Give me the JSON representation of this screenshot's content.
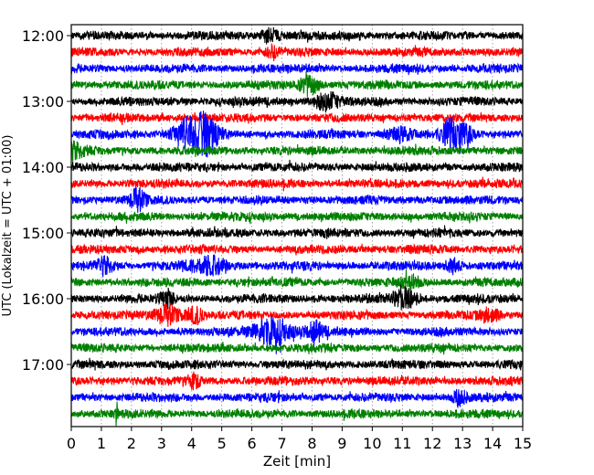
{
  "chart_data": {
    "type": "line",
    "subtype": "seismogram-dayplot",
    "xlabel": "Zeit  [min]",
    "ylabel": "UTC (Lokalzeit = UTC + 01:00)",
    "xlim": [
      0,
      15
    ],
    "x_ticks": [
      "0",
      "1",
      "2",
      "3",
      "4",
      "5",
      "6",
      "7",
      "8",
      "9",
      "10",
      "11",
      "12",
      "13",
      "14",
      "15"
    ],
    "y_ticks": [
      "12:00",
      "13:00",
      "14:00",
      "15:00",
      "16:00",
      "17:00"
    ],
    "grid": true,
    "trace_interval_min": 15,
    "trace_count": 24,
    "trace_colors": [
      "#000000",
      "#ff0000",
      "#0000ff",
      "#008000"
    ],
    "events": [
      {
        "trace": 0,
        "minute": 6.6,
        "amp": 1.6,
        "width": 0.3
      },
      {
        "trace": 1,
        "minute": 6.7,
        "amp": 1.4,
        "width": 0.2
      },
      {
        "trace": 3,
        "minute": 7.9,
        "amp": 2.2,
        "width": 0.3
      },
      {
        "trace": 4,
        "minute": 8.5,
        "amp": 2.0,
        "width": 0.4
      },
      {
        "trace": 6,
        "minute": 3.9,
        "amp": 3.5,
        "width": 0.5
      },
      {
        "trace": 6,
        "minute": 4.5,
        "amp": 3.8,
        "width": 0.4
      },
      {
        "trace": 6,
        "minute": 12.6,
        "amp": 3.0,
        "width": 0.3
      },
      {
        "trace": 6,
        "minute": 13.1,
        "amp": 2.2,
        "width": 0.3
      },
      {
        "trace": 6,
        "minute": 10.9,
        "amp": 1.5,
        "width": 0.4
      },
      {
        "trace": 7,
        "minute": 0.1,
        "amp": 1.6,
        "width": 0.3
      },
      {
        "trace": 10,
        "minute": 2.2,
        "amp": 2.2,
        "width": 0.25
      },
      {
        "trace": 14,
        "minute": 1.1,
        "amp": 1.8,
        "width": 0.3
      },
      {
        "trace": 14,
        "minute": 4.6,
        "amp": 1.9,
        "width": 0.6
      },
      {
        "trace": 14,
        "minute": 12.7,
        "amp": 1.6,
        "width": 0.2
      },
      {
        "trace": 15,
        "minute": 11.3,
        "amp": 1.3,
        "width": 0.3
      },
      {
        "trace": 16,
        "minute": 3.2,
        "amp": 1.8,
        "width": 0.2
      },
      {
        "trace": 16,
        "minute": 11.1,
        "amp": 2.3,
        "width": 0.4
      },
      {
        "trace": 17,
        "minute": 3.2,
        "amp": 2.0,
        "width": 0.4
      },
      {
        "trace": 17,
        "minute": 4.1,
        "amp": 1.8,
        "width": 0.3
      },
      {
        "trace": 17,
        "minute": 13.9,
        "amp": 1.5,
        "width": 0.3
      },
      {
        "trace": 18,
        "minute": 6.7,
        "amp": 3.2,
        "width": 0.6
      },
      {
        "trace": 18,
        "minute": 8.1,
        "amp": 2.0,
        "width": 0.3
      },
      {
        "trace": 21,
        "minute": 4.1,
        "amp": 1.3,
        "width": 0.2
      },
      {
        "trace": 22,
        "minute": 12.9,
        "amp": 1.8,
        "width": 0.2
      },
      {
        "trace": 23,
        "minute": 1.5,
        "amp": 2.5,
        "width": 0.04
      }
    ]
  }
}
